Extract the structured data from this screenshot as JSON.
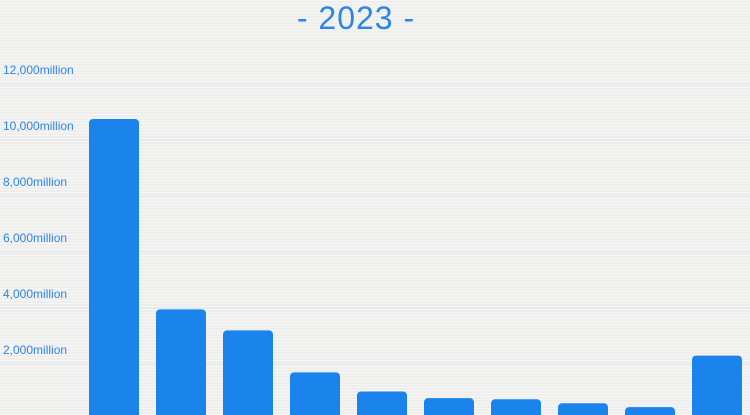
{
  "title": "- 2023 -",
  "colors": {
    "bar": "#1a84ec",
    "text": "#2d85e5",
    "grid": "#dfe6ef",
    "background": "#f2f2f1"
  },
  "chart_data": {
    "type": "bar",
    "title": "- 2023 -",
    "xlabel": "",
    "ylabel": "",
    "categories": [
      "",
      "",
      "",
      "",
      "",
      "",
      "",
      "",
      "",
      ""
    ],
    "values": [
      10750,
      3950,
      3200,
      1700,
      1020,
      780,
      740,
      600,
      460,
      2300
    ],
    "ylim": [
      0,
      12000
    ],
    "yticks": [
      {
        "value": 2000,
        "label": "2,000million"
      },
      {
        "value": 4000,
        "label": "4,000million"
      },
      {
        "value": 6000,
        "label": "6,000million"
      },
      {
        "value": 8000,
        "label": "8,000million"
      },
      {
        "value": 10000,
        "label": "10,000million"
      },
      {
        "value": 12000,
        "label": "12,000million"
      }
    ],
    "grid": true,
    "legend": "none"
  }
}
